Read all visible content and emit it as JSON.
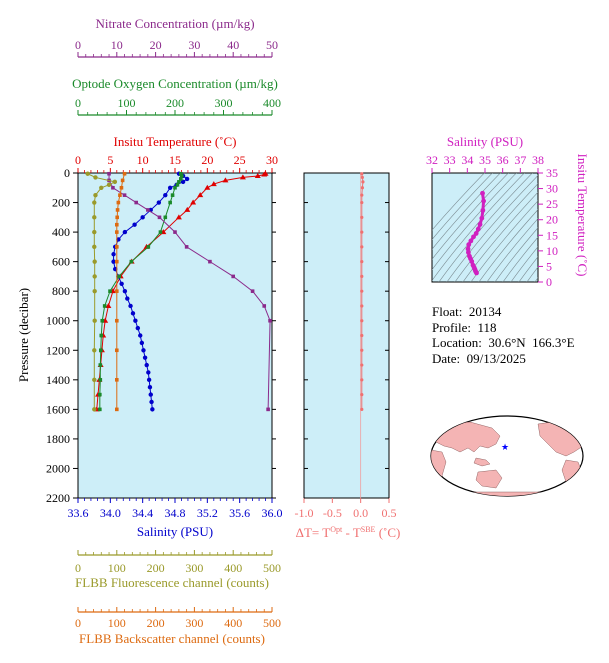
{
  "colors": {
    "nitrate": "#8b2a8b",
    "oxygen": "#1a8a2a",
    "temperature": "#e00000",
    "salinity": "#0000cc",
    "fluorescence": "#9a9a2a",
    "backscatter": "#dd6a10",
    "delta_t": "#f07070",
    "ts_salinity": "#d020c0",
    "panel_bg": "#cdeef8"
  },
  "info": {
    "float_label": "Float:",
    "float_value": "20134",
    "profile_label": "Profile:",
    "profile_value": "118",
    "location_label": "Location:",
    "location_value": "30.6°N  166.3°E",
    "date_label": "Date:",
    "date_value": "09/13/2025"
  },
  "map": {
    "marker": "float-location-star"
  },
  "chart_data": [
    {
      "type": "line",
      "panel": "main-profile",
      "ylabel": "Pressure (decibar)",
      "yticks": [
        "0",
        "200",
        "400",
        "600",
        "800",
        "1000",
        "1200",
        "1400",
        "1600",
        "1800",
        "2000",
        "2200"
      ],
      "ylim": [
        2200,
        0
      ],
      "axes": {
        "temperature": {
          "label": "Insitu Temperature (˚C)",
          "ticks": [
            "0",
            "5",
            "10",
            "15",
            "20",
            "25",
            "30"
          ],
          "range": [
            0,
            30
          ],
          "position": "top"
        },
        "oxygen": {
          "label": "Optode Oxygen Concentration (µm/kg)",
          "ticks": [
            "0",
            "100",
            "200",
            "300",
            "400"
          ],
          "range": [
            0,
            400
          ],
          "position": "top"
        },
        "nitrate": {
          "label": "Nitrate Concentration (µm/kg)",
          "ticks": [
            "0",
            "10",
            "20",
            "30",
            "40",
            "50"
          ],
          "range": [
            0,
            50
          ],
          "position": "top"
        },
        "salinity": {
          "label": "Salinity (PSU)",
          "ticks": [
            "33.6",
            "34.0",
            "34.4",
            "34.8",
            "35.2",
            "35.6",
            "36.0"
          ],
          "range": [
            33.6,
            36.0
          ],
          "position": "bottom"
        },
        "fluorescence": {
          "label": "FLBB Fluorescence channel (counts)",
          "ticks": [
            "0",
            "100",
            "200",
            "300",
            "400",
            "500"
          ],
          "range": [
            0,
            500
          ],
          "position": "bottom"
        },
        "backscatter": {
          "label": "FLBB Backscatter channel (counts)",
          "ticks": [
            "0",
            "100",
            "200",
            "300",
            "400",
            "500"
          ],
          "range": [
            0,
            500
          ],
          "position": "bottom"
        }
      },
      "series": [
        {
          "key": "temperature",
          "pressure": [
            5,
            10,
            20,
            30,
            50,
            75,
            100,
            150,
            200,
            250,
            300,
            400,
            500,
            600,
            700,
            800,
            900,
            1000,
            1100,
            1200,
            1300,
            1400,
            1500,
            1600
          ],
          "values": [
            29.0,
            28.8,
            27.8,
            25.5,
            22.8,
            21.0,
            20.0,
            18.9,
            17.8,
            16.9,
            15.6,
            13.2,
            10.6,
            8.3,
            6.6,
            5.4,
            4.7,
            4.2,
            3.9,
            3.7,
            3.5,
            3.3,
            3.1,
            2.9
          ]
        },
        {
          "key": "salinity",
          "pressure": [
            5,
            20,
            40,
            60,
            80,
            100,
            150,
            200,
            250,
            300,
            350,
            400,
            450,
            500,
            550,
            600,
            650,
            700,
            750,
            800,
            850,
            900,
            950,
            1000,
            1050,
            1100,
            1150,
            1200,
            1250,
            1300,
            1350,
            1400,
            1450,
            1500,
            1550,
            1600
          ],
          "values": [
            34.85,
            34.9,
            34.95,
            34.9,
            34.82,
            34.74,
            34.68,
            34.6,
            34.5,
            34.4,
            34.3,
            34.18,
            34.1,
            34.06,
            34.04,
            34.04,
            34.06,
            34.1,
            34.14,
            34.18,
            34.21,
            34.25,
            34.28,
            34.31,
            34.34,
            34.37,
            34.39,
            34.41,
            34.43,
            34.45,
            34.47,
            34.48,
            34.49,
            34.5,
            34.51,
            34.52
          ]
        },
        {
          "key": "oxygen",
          "pressure": [
            5,
            20,
            40,
            60,
            80,
            100,
            150,
            200,
            300,
            400,
            500,
            600,
            700,
            800,
            900,
            1000,
            1100,
            1200,
            1300,
            1400,
            1500,
            1600
          ],
          "values": [
            212,
            214,
            212,
            208,
            205,
            200,
            195,
            190,
            180,
            170,
            145,
            110,
            85,
            66,
            55,
            50,
            48,
            47,
            46,
            46,
            45,
            45
          ]
        },
        {
          "key": "nitrate",
          "pressure": [
            5,
            50,
            100,
            150,
            200,
            250,
            300,
            400,
            500,
            600,
            700,
            800,
            900,
            1000,
            1600
          ],
          "values": [
            8,
            8,
            9,
            12,
            15,
            18,
            21,
            25,
            28,
            34,
            40,
            45,
            48,
            49.5,
            49
          ]
        },
        {
          "key": "fluorescence",
          "pressure": [
            5,
            30,
            60,
            80,
            100,
            150,
            200,
            300,
            400,
            500,
            600,
            700,
            800,
            1000,
            1200,
            1400,
            1600
          ],
          "values": [
            25,
            45,
            95,
            80,
            60,
            45,
            42,
            42,
            42,
            42,
            43,
            43,
            43,
            43,
            42,
            42,
            42
          ]
        },
        {
          "key": "backscatter",
          "pressure": [
            5,
            50,
            100,
            150,
            200,
            250,
            300,
            350,
            400,
            500,
            600,
            800,
            1000,
            1200,
            1400,
            1600
          ],
          "values": [
            120,
            115,
            112,
            108,
            104,
            102,
            101,
            100,
            100,
            100,
            100,
            100,
            100,
            100,
            100,
            100
          ]
        }
      ]
    },
    {
      "type": "line",
      "panel": "delta-t",
      "xlabel": "ΔT= T^Opt - T^SBE (˚C)",
      "xlim": [
        -1.0,
        0.5
      ],
      "xticks": [
        "-1.0",
        "-0.5",
        "0.0",
        "0.5"
      ],
      "ylim": [
        2200,
        0
      ],
      "series": [
        {
          "key": "delta_t",
          "pressure": [
            5,
            30,
            60,
            100,
            150,
            200,
            300,
            400,
            500,
            600,
            700,
            800,
            900,
            1000,
            1100,
            1200,
            1300,
            1400,
            1500,
            1600
          ],
          "values": [
            0.02,
            0.03,
            0.04,
            0.03,
            0.02,
            0.02,
            0.02,
            0.02,
            0.02,
            0.02,
            0.02,
            0.02,
            0.02,
            0.02,
            0.02,
            0.02,
            0.02,
            0.02,
            0.02,
            0.02
          ]
        }
      ]
    },
    {
      "type": "scatter",
      "panel": "ts-diagram",
      "xlabel": "Salinity (PSU)",
      "ylabel": "Insitu Temperature (˚C)",
      "xlim": [
        32,
        38
      ],
      "ylim": [
        0,
        35
      ],
      "xticks": [
        "32",
        "33",
        "34",
        "35",
        "36",
        "37",
        "38"
      ],
      "yticks": [
        "0",
        "5",
        "10",
        "15",
        "20",
        "25",
        "30",
        "35"
      ],
      "series": [
        {
          "key": "ts",
          "salinity": [
            34.52,
            34.48,
            34.45,
            34.42,
            34.38,
            34.32,
            34.25,
            34.18,
            34.12,
            34.06,
            34.04,
            34.08,
            34.2,
            34.35,
            34.5,
            34.62,
            34.72,
            34.82,
            34.88,
            34.92,
            34.86
          ],
          "temperature": [
            2.9,
            3.3,
            3.7,
            4.2,
            4.7,
            5.4,
            6.6,
            7.5,
            8.3,
            9.5,
            10.6,
            12.0,
            13.2,
            14.5,
            15.6,
            17.0,
            18.5,
            20.5,
            23.0,
            26.0,
            28.5
          ]
        }
      ]
    }
  ]
}
